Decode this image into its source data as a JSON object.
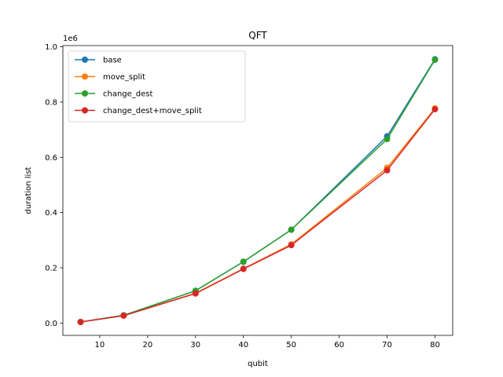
{
  "chart_data": {
    "type": "line",
    "title": "QFT",
    "xlabel": "qubit",
    "ylabel": "duration list",
    "y_offset_label": "1e6",
    "xlim": [
      2.3,
      83.7
    ],
    "ylim": [
      -0.0445,
      1.0045
    ],
    "xticks": [
      10,
      20,
      30,
      40,
      50,
      60,
      70,
      80
    ],
    "yticks": [
      0.0,
      0.2,
      0.4,
      0.6,
      0.8,
      1.0
    ],
    "ytick_labels": [
      "0.0",
      "0.2",
      "0.4",
      "0.6",
      "0.8",
      "1.0"
    ],
    "grid": false,
    "legend_position": "upper left",
    "x": [
      6,
      15,
      30,
      40,
      50,
      70,
      80
    ],
    "series": [
      {
        "name": "base",
        "color": "#1f77b4",
        "values": [
          0.004,
          0.028,
          0.117,
          0.222,
          0.338,
          0.676,
          0.955
        ]
      },
      {
        "name": "move_split",
        "color": "#ff7f0e",
        "values": [
          0.004,
          0.027,
          0.108,
          0.197,
          0.285,
          0.562,
          0.777
        ]
      },
      {
        "name": "change_dest",
        "color": "#2ca02c",
        "values": [
          0.004,
          0.028,
          0.117,
          0.222,
          0.338,
          0.666,
          0.953
        ]
      },
      {
        "name": "change_dest+move_split",
        "color": "#d62728",
        "values": [
          0.004,
          0.027,
          0.107,
          0.196,
          0.282,
          0.553,
          0.774
        ]
      }
    ]
  }
}
